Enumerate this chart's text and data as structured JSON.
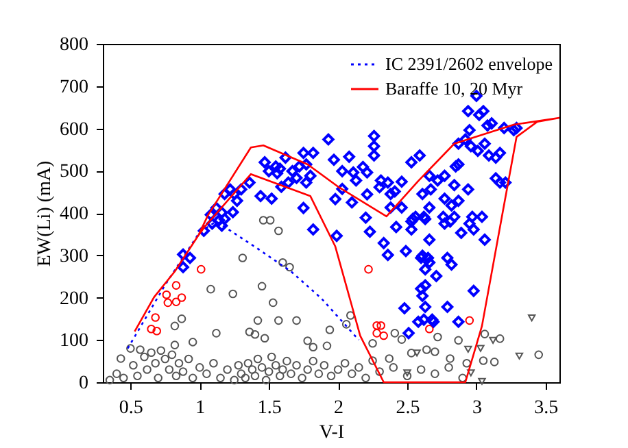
{
  "chart_data": {
    "type": "scatter",
    "xlabel": "V-I",
    "ylabel": "EW(Li) (mA)",
    "xlim": [
      0.3,
      3.6
    ],
    "ylim": [
      0,
      800
    ],
    "xticks": [
      0.5,
      1,
      1.5,
      2,
      2.5,
      3,
      3.5
    ],
    "yticks": [
      0,
      100,
      200,
      300,
      400,
      500,
      600,
      700,
      800
    ],
    "legend": "top right",
    "series": [
      {
        "marker": "circle",
        "color": "#555555",
        "x": [
          1.46,
          1.51,
          1.57,
          1.31,
          1.6,
          1.65,
          1.45,
          1.08,
          1.24,
          1.53,
          0.82,
          0.87,
          1.42,
          1.57,
          1.7,
          1.12,
          1.36,
          1.4,
          1.47,
          1.78,
          0.95,
          0.5,
          0.43,
          0.57,
          0.82,
          2.09,
          2.06,
          1.94,
          1.82,
          1.92,
          2.25,
          2.41,
          2.46,
          2.72,
          2.87,
          3.06,
          3.17,
          3.45,
          3.05,
          3.13,
          2.93,
          2.81,
          2.64,
          2.7,
          2.53,
          2.37,
          2.25,
          0.35,
          0.4,
          0.45,
          0.52,
          0.55,
          0.6,
          0.62,
          0.65,
          0.68,
          0.7,
          0.72,
          0.75,
          0.78,
          0.8,
          0.83,
          0.85,
          0.88,
          0.92,
          0.95,
          1.0,
          1.05,
          1.1,
          1.15,
          1.2,
          1.25,
          1.28,
          1.3,
          1.33,
          1.35,
          1.38,
          1.4,
          1.42,
          1.45,
          1.48,
          1.5,
          1.52,
          1.55,
          1.58,
          1.6,
          1.63,
          1.66,
          1.7,
          1.74,
          1.78,
          1.82,
          1.86,
          1.9,
          1.95,
          2.0,
          2.05,
          2.1,
          2.15,
          2.2,
          2.3,
          2.4,
          2.5,
          2.6,
          2.7,
          2.8,
          2.9
        ],
        "values": [
          383,
          383,
          358,
          294,
          283,
          272,
          227,
          220,
          209,
          188,
          133,
          150,
          146,
          146,
          146,
          116,
          119,
          113,
          104,
          98,
          95,
          80,
          56,
          77,
          88,
          158,
          137,
          124,
          83,
          86,
          92,
          116,
          101,
          107,
          99,
          114,
          103,
          65,
          51,
          48,
          45,
          56,
          77,
          72,
          69,
          56,
          51,
          5,
          20,
          10,
          40,
          15,
          60,
          30,
          70,
          45,
          10,
          75,
          55,
          30,
          65,
          15,
          45,
          25,
          55,
          10,
          35,
          20,
          45,
          10,
          30,
          5,
          40,
          20,
          10,
          45,
          30,
          15,
          55,
          35,
          5,
          25,
          60,
          40,
          15,
          30,
          50,
          20,
          40,
          10,
          30,
          50,
          20,
          40,
          15,
          30,
          45,
          20,
          35,
          10,
          25,
          35,
          15,
          30,
          20,
          35,
          10
        ]
      },
      {
        "marker": "triangle",
        "color": "#555555",
        "x": [
          3.4,
          3.31,
          2.5,
          2.57,
          2.96,
          2.94,
          3.03,
          3.12,
          3.04
        ],
        "values": [
          152,
          62,
          22,
          69,
          22,
          78,
          80,
          99,
          2
        ]
      },
      {
        "marker": "circle",
        "color": "#ff0000",
        "x": [
          1.01,
          0.83,
          0.76,
          0.87,
          0.83,
          0.77,
          0.68,
          0.65,
          0.69,
          2.22,
          2.28,
          2.31,
          2.28,
          2.33,
          2.66,
          2.95
        ],
        "values": [
          267,
          229,
          207,
          200,
          190,
          188,
          153,
          126,
          121,
          267,
          134,
          134,
          116,
          110,
          126,
          146
        ]
      },
      {
        "marker": "diamond",
        "color": "#0000ff",
        "x": [
          0.88,
          0.93,
          0.88,
          1.03,
          1.09,
          1.14,
          1.18,
          1.16,
          1.24,
          1.08,
          1.12,
          1.16,
          1.18,
          1.22,
          1.25,
          1.27,
          1.3,
          1.36,
          1.44,
          1.47,
          1.5,
          1.52,
          1.55,
          1.56,
          1.58,
          1.59,
          1.62,
          1.64,
          1.67,
          1.72,
          1.7,
          1.75,
          1.77,
          1.77,
          1.75,
          1.8,
          1.93,
          1.82,
          1.97,
          2.08,
          2.03,
          2.11,
          2.18,
          2.21,
          2.26,
          2.26,
          2.26,
          2.13,
          2.21,
          2.31,
          2.3,
          2.36,
          2.46,
          2.38,
          2.41,
          2.03,
          2.1,
          1.98,
          2.2,
          2.38,
          2.46,
          2.54,
          2.53,
          2.59,
          2.66,
          2.61,
          2.67,
          2.72,
          2.77,
          2.77,
          2.84,
          2.85,
          2.87,
          2.87,
          2.92,
          2.95,
          2.94,
          3.0,
          3.02,
          3.05,
          3.08,
          3.11,
          2.96,
          3.01,
          3.06,
          3.09,
          3.14,
          3.17,
          3.2,
          3.27,
          3.29,
          3.14,
          3.17,
          3.21,
          2.94,
          2.87,
          2.82,
          2.84,
          2.81,
          2.76,
          2.66,
          2.63,
          2.97,
          3.04,
          2.53,
          1.82,
          1.99,
          2.23,
          2.33,
          2.36,
          2.42,
          2.49,
          2.48,
          2.51,
          2.53,
          2.6,
          2.61,
          2.58,
          2.6,
          2.61,
          2.62,
          2.63,
          2.63,
          2.65,
          2.66,
          2.63,
          2.68,
          2.69,
          2.66,
          2.71,
          2.79,
          2.82,
          2.79,
          2.87,
          2.89,
          2.95,
          2.98,
          3.06,
          2.98,
          2.62,
          2.77,
          2.56
        ],
        "values": [
          302,
          294,
          272,
          358,
          375,
          383,
          386,
          370,
          402,
          396,
          412,
          401,
          445,
          456,
          445,
          429,
          456,
          472,
          440,
          520,
          499,
          434,
          510,
          494,
          505,
          462,
          531,
          472,
          499,
          510,
          483,
          542,
          515,
          472,
          412,
          488,
          574,
          542,
          526,
          533,
          499,
          496,
          509,
          496,
          582,
          558,
          536,
          477,
          444,
          477,
          461,
          472,
          474,
          445,
          451,
          457,
          425,
          433,
          389,
          413,
          413,
          386,
          520,
          536,
          488,
          445,
          456,
          477,
          488,
          434,
          466,
          510,
          515,
          564,
          574,
          596,
          641,
          677,
          632,
          641,
          607,
          612,
          558,
          547,
          564,
          536,
          531,
          542,
          601,
          596,
          601,
          482,
          472,
          472,
          456,
          429,
          418,
          391,
          380,
          391,
          413,
          386,
          391,
          391,
          380,
          361,
          346,
          356,
          329,
          301,
          367,
          310,
          175,
          116,
          361,
          294,
          299,
          143,
          221,
          204,
          148,
          229,
          267,
          294,
          283,
          178,
          148,
          143,
          337,
          251,
          294,
          278,
          178,
          143,
          353,
          375,
          361,
          337,
          216,
          391,
          375,
          391
        ]
      },
      {
        "type": "line",
        "name": "IC 2391/2602 envelope",
        "color": "#0000ff",
        "line_style": "dotted",
        "x": [
          0.48,
          0.75,
          1.0,
          1.12,
          1.4,
          1.66,
          1.88,
          2.15
        ],
        "values": [
          80,
          230,
          355,
          380,
          320,
          262,
          198,
          100
        ]
      },
      {
        "type": "line",
        "name": "Baraffe 10, 20 Myr",
        "color": "#ff0000",
        "line_style": "solid",
        "x": [
          0.53,
          0.67,
          0.82,
          0.99,
          1.06,
          1.37,
          1.46,
          1.78,
          2.01,
          2.35,
          2.58,
          2.84,
          3.27,
          3.6,
          null,
          0.53,
          0.67,
          0.82,
          0.99,
          1.04,
          1.37,
          1.8,
          1.98,
          2.16,
          2.33,
          2.92,
          3.04,
          3.19,
          3.29,
          3.44,
          3.6
        ],
        "values": [
          120,
          201,
          262,
          347,
          395,
          555,
          560,
          515,
          460,
          392,
          476,
          564,
          609,
          625,
          null,
          120,
          201,
          262,
          347,
          369,
          492,
          440,
          321,
          110,
          0,
          0,
          133,
          402,
          580,
          616,
          625
        ]
      }
    ]
  }
}
